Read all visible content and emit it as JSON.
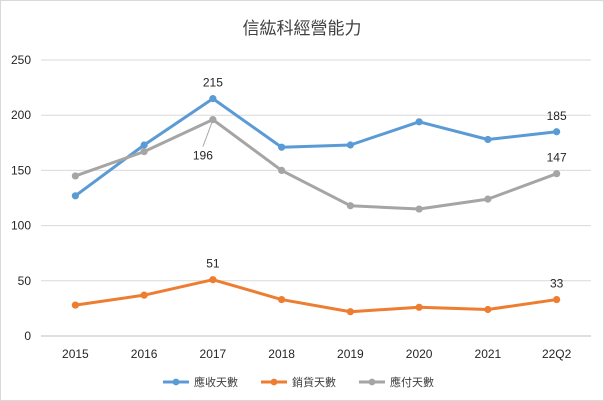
{
  "chart_data": {
    "type": "line",
    "title": "信紘科經營能力",
    "categories": [
      "2015",
      "2016",
      "2017",
      "2018",
      "2019",
      "2020",
      "2021",
      "22Q2"
    ],
    "ylim": [
      0,
      250
    ],
    "yticks": [
      0,
      50,
      100,
      150,
      200,
      250
    ],
    "grid": true,
    "legend": "bottom",
    "series": [
      {
        "name": "應收天數",
        "color": "#5b9bd5",
        "values": [
          127,
          173,
          215,
          171,
          173,
          194,
          178,
          185
        ],
        "labels": [
          {
            "index": 2,
            "text": "215",
            "pos": "above"
          },
          {
            "index": 7,
            "text": "185",
            "pos": "above"
          }
        ]
      },
      {
        "name": "銷貨天數",
        "color": "#ed7d31",
        "values": [
          28,
          37,
          51,
          33,
          22,
          26,
          24,
          33
        ],
        "labels": [
          {
            "index": 2,
            "text": "51",
            "pos": "above"
          },
          {
            "index": 7,
            "text": "33",
            "pos": "above"
          }
        ]
      },
      {
        "name": "應付天數",
        "color": "#a5a5a5",
        "values": [
          145,
          167,
          196,
          150,
          118,
          115,
          124,
          147
        ],
        "labels": [
          {
            "index": 2,
            "text": "196",
            "pos": "below"
          },
          {
            "index": 7,
            "text": "147",
            "pos": "above"
          }
        ]
      }
    ]
  }
}
